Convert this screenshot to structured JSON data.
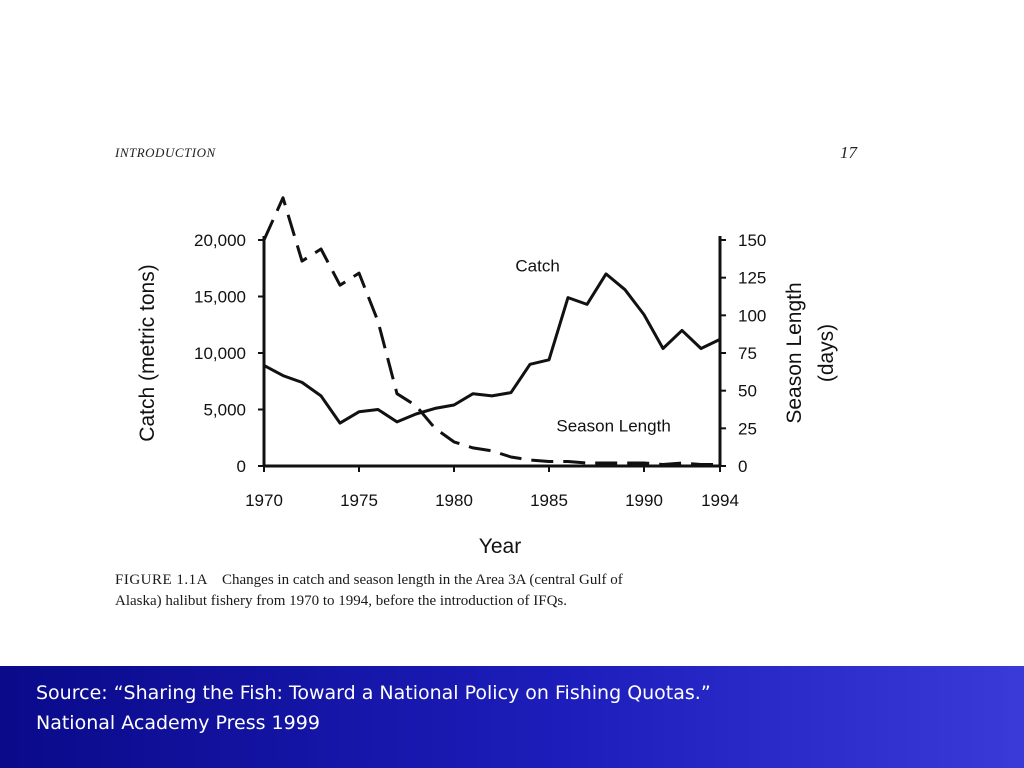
{
  "page_header": {
    "running_head": "INTRODUCTION",
    "page_number": "17"
  },
  "figure": {
    "caption_label": "FIGURE 1.1A",
    "caption_line1": "Changes in catch and season length in the Area 3A (central Gulf of",
    "caption_line2": "Alaska) halibut fishery from 1970 to 1994, before the introduction of IFQs."
  },
  "source": {
    "line1": "Source: “Sharing the Fish: Toward a National Policy on Fishing Quotas.”",
    "line2": "National Academy Press 1999"
  },
  "chart_data": {
    "type": "line",
    "xlabel": "Year",
    "ylabel_left": "Catch (metric tons)",
    "ylabel_right_line1": "Season Length",
    "ylabel_right_line2": "(days)",
    "xlim": [
      1970,
      1994
    ],
    "ylim_left": [
      0,
      20000
    ],
    "ylim_right": [
      0,
      150
    ],
    "x_ticks": [
      1970,
      1975,
      1980,
      1985,
      1990,
      1994
    ],
    "x_tick_labels": [
      "1970",
      "1975",
      "1980",
      "1985",
      "1990",
      "1994"
    ],
    "left_ticks": [
      0,
      5000,
      10000,
      15000,
      20000
    ],
    "left_tick_labels": [
      "0",
      "5,000",
      "10,000",
      "15,000",
      "20,000"
    ],
    "right_ticks": [
      0,
      25,
      50,
      75,
      100,
      125,
      150
    ],
    "right_tick_labels": [
      "0",
      "25",
      "50",
      "75",
      "100",
      "125",
      "150"
    ],
    "grid": false,
    "series": [
      {
        "name": "Catch",
        "axis": "left",
        "style": "solid",
        "color": "#111111",
        "x": [
          1970,
          1971,
          1972,
          1973,
          1974,
          1975,
          1976,
          1977,
          1978,
          1979,
          1980,
          1981,
          1982,
          1983,
          1984,
          1985,
          1986,
          1987,
          1988,
          1989,
          1990,
          1991,
          1992,
          1993,
          1994
        ],
        "values": [
          8900,
          8000,
          7400,
          6200,
          3800,
          4800,
          5000,
          3900,
          4600,
          5100,
          5400,
          6400,
          6200,
          6500,
          9000,
          9400,
          14900,
          14300,
          17000,
          15600,
          13400,
          10400,
          12000,
          10400,
          11200
        ]
      },
      {
        "name": "Season Length",
        "axis": "right",
        "style": "dashed",
        "color": "#111111",
        "x": [
          1970,
          1971,
          1972,
          1973,
          1974,
          1975,
          1976,
          1977,
          1978,
          1979,
          1980,
          1981,
          1982,
          1983,
          1984,
          1985,
          1986,
          1987,
          1988,
          1989,
          1990,
          1991,
          1992,
          1993,
          1994
        ],
        "values": [
          150,
          178,
          136,
          144,
          120,
          128,
          96,
          48,
          40,
          25,
          16,
          12,
          10,
          6,
          4,
          3,
          3,
          2,
          2,
          2,
          2,
          1,
          2,
          1,
          1
        ]
      }
    ],
    "annotations": [
      {
        "text": "Catch",
        "x": 1984.4,
        "y": 133
      },
      {
        "text": "Season Length",
        "x": 1988.4,
        "y": 27
      }
    ]
  }
}
